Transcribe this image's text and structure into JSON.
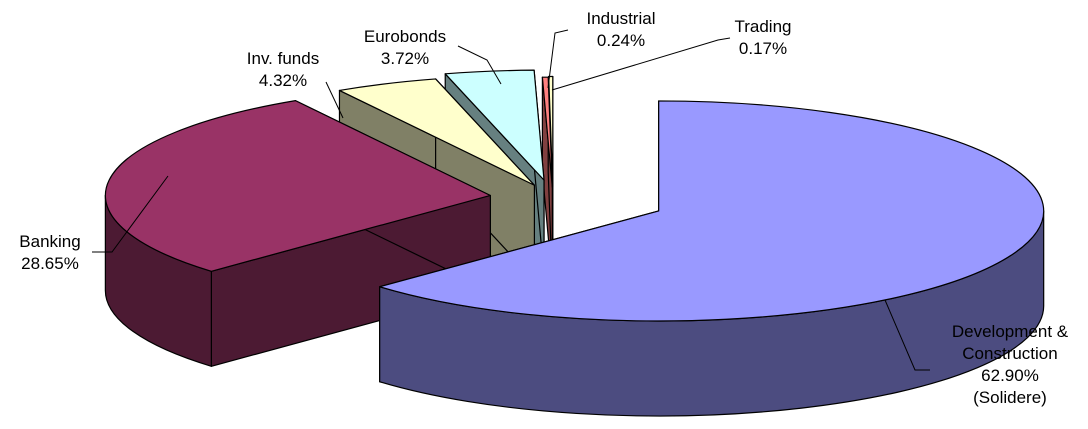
{
  "chart_data": {
    "type": "pie",
    "style": "3d-exploded",
    "slices": [
      {
        "name": "Development & Construction",
        "value": 62.9,
        "label": [
          "Development &",
          "Construction",
          "62.90%",
          "(Solidere)"
        ],
        "color": "#9999FF",
        "side_color": "#4C4C80"
      },
      {
        "name": "Banking",
        "value": 28.65,
        "label": [
          "Banking",
          "28.65%"
        ],
        "color": "#993366",
        "side_color": "#4C1A33"
      },
      {
        "name": "Inv. funds",
        "value": 4.32,
        "label": [
          "Inv. funds",
          "4.32%"
        ],
        "color": "#FFFFCC",
        "side_color": "#808066"
      },
      {
        "name": "Eurobonds",
        "value": 3.72,
        "label": [
          "Eurobonds",
          "3.72%"
        ],
        "color": "#CCFFFF",
        "side_color": "#668080"
      },
      {
        "name": "Industrial",
        "value": 0.24,
        "label": [
          "Industrial",
          "0.24%"
        ],
        "color": "#FF8080",
        "side_color": "#804040"
      },
      {
        "name": "Trading",
        "value": 0.17,
        "label": [
          "Trading",
          "0.17%"
        ],
        "color": "#FFFFCC",
        "side_color": "#808066"
      }
    ]
  }
}
